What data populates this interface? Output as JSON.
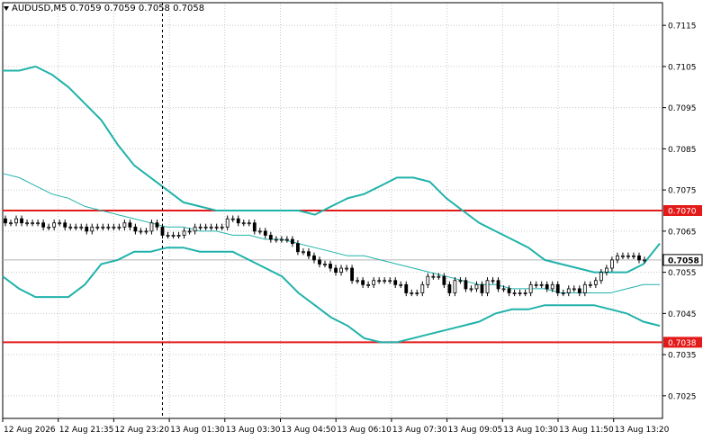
{
  "chart_data": {
    "type": "line",
    "title": "AUDUSD,M5  0.7059 0.7059 0.7058 0.7058",
    "symbol": "AUDUSD",
    "timeframe": "M5",
    "ohlc_header": [
      "0.7059",
      "0.7059",
      "0.7058",
      "0.7058"
    ],
    "ylim": [
      0.70195,
      0.71205
    ],
    "y_ticks": [
      "0.7115",
      "0.7105",
      "0.7095",
      "0.7085",
      "0.7075",
      "0.7065",
      "0.7055",
      "0.7045",
      "0.7035",
      "0.7025"
    ],
    "x_ticks": [
      "12 Aug 2026",
      "12 Aug 21:35",
      "12 Aug 23:20",
      "13 Aug 01:30",
      "13 Aug 03:30",
      "13 Aug 04:50",
      "13 Aug 06:10",
      "13 Aug 07:30",
      "13 Aug 09:05",
      "13 Aug 10:30",
      "13 Aug 11:50",
      "13 Aug 13:20"
    ],
    "grid": true,
    "horizontal_lines": [
      {
        "label": "0.7070",
        "value": 0.707,
        "color": "#e31a1a"
      },
      {
        "label": "0.7038",
        "value": 0.7038,
        "color": "#e31a1a"
      }
    ],
    "current_price": {
      "label": "0.7058",
      "value": 0.7058
    },
    "vertical_marker_index": 29,
    "series": [
      {
        "type": "bollinger_upper",
        "color": "#20b2aa",
        "values": [
          0.7104,
          0.7104,
          0.7105,
          0.7103,
          0.71,
          0.7096,
          0.7092,
          0.7086,
          0.7081,
          0.7078,
          0.7075,
          0.7072,
          0.7071,
          0.707,
          0.707,
          0.707,
          0.707,
          0.707,
          0.707,
          0.7069,
          0.7071,
          0.7073,
          0.7074,
          0.7076,
          0.7078,
          0.7078,
          0.7077,
          0.7073,
          0.707,
          0.7067,
          0.7065,
          0.7063,
          0.7061,
          0.7058,
          0.7057,
          0.7056,
          0.7055,
          0.7055,
          0.7055,
          0.7057,
          0.7062
        ]
      },
      {
        "type": "bollinger_middle",
        "color": "#20b2aa",
        "values": [
          0.7079,
          0.7078,
          0.7076,
          0.7074,
          0.7073,
          0.7071,
          0.707,
          0.7069,
          0.7068,
          0.7067,
          0.7066,
          0.7066,
          0.7065,
          0.7065,
          0.7064,
          0.7064,
          0.7063,
          0.7063,
          0.7062,
          0.7061,
          0.706,
          0.7059,
          0.7059,
          0.7058,
          0.7057,
          0.7056,
          0.7055,
          0.7054,
          0.7053,
          0.7052,
          0.7052,
          0.7051,
          0.7051,
          0.7051,
          0.705,
          0.705,
          0.705,
          0.705,
          0.7051,
          0.7052,
          0.7052
        ]
      },
      {
        "type": "bollinger_lower",
        "color": "#20b2aa",
        "values": [
          0.7054,
          0.7051,
          0.7049,
          0.7049,
          0.7049,
          0.7052,
          0.7057,
          0.7058,
          0.706,
          0.706,
          0.7061,
          0.7061,
          0.706,
          0.706,
          0.706,
          0.7058,
          0.7056,
          0.7054,
          0.705,
          0.7047,
          0.7044,
          0.7042,
          0.7039,
          0.7038,
          0.7038,
          0.7039,
          0.704,
          0.7041,
          0.7042,
          0.7043,
          0.7045,
          0.7046,
          0.7046,
          0.7047,
          0.7047,
          0.7047,
          0.7047,
          0.7046,
          0.7045,
          0.7043,
          0.7042
        ]
      }
    ],
    "candles": {
      "open": [
        0.7068,
        0.7067,
        0.7067,
        0.7068,
        0.7067,
        0.7067,
        0.7067,
        0.7067,
        0.7066,
        0.7066,
        0.7067,
        0.7067,
        0.7066,
        0.7066,
        0.7066,
        0.7066,
        0.7065,
        0.7066,
        0.7066,
        0.7066,
        0.7066,
        0.7066,
        0.7066,
        0.7067,
        0.7066,
        0.7065,
        0.7065,
        0.7065,
        0.7067,
        0.7066,
        0.7064,
        0.7064,
        0.7064,
        0.7064,
        0.7065,
        0.7065,
        0.7066,
        0.7066,
        0.7066,
        0.7066,
        0.7066,
        0.7066,
        0.7068,
        0.7068,
        0.7067,
        0.7067,
        0.7067,
        0.7065,
        0.7065,
        0.7064,
        0.7063,
        0.7063,
        0.7063,
        0.7063,
        0.7062,
        0.706,
        0.706,
        0.7059,
        0.7058,
        0.7057,
        0.7057,
        0.7056,
        0.7055,
        0.7056,
        0.7056,
        0.7053,
        0.7053,
        0.7052,
        0.7052,
        0.7053,
        0.7053,
        0.7053,
        0.7053,
        0.7052,
        0.7052,
        0.705,
        0.705,
        0.705,
        0.7052,
        0.7054,
        0.7054,
        0.7054,
        0.7052,
        0.705,
        0.7053,
        0.7053,
        0.7051,
        0.7051,
        0.7052,
        0.705,
        0.7053,
        0.7053,
        0.7051,
        0.7051,
        0.705,
        0.705,
        0.705,
        0.705,
        0.7052,
        0.7052,
        0.7052,
        0.7051,
        0.7052,
        0.705,
        0.705,
        0.7051,
        0.7051,
        0.705,
        0.7052,
        0.7052,
        0.7053,
        0.7055,
        0.7056,
        0.7058,
        0.7059,
        0.7059,
        0.7059,
        0.7059,
        0.7058
      ],
      "close": [
        0.7067,
        0.7067,
        0.7068,
        0.7067,
        0.7067,
        0.7067,
        0.7067,
        0.7066,
        0.7066,
        0.7067,
        0.7067,
        0.7066,
        0.7066,
        0.7066,
        0.7066,
        0.7065,
        0.7066,
        0.7066,
        0.7066,
        0.7066,
        0.7066,
        0.7066,
        0.7067,
        0.7066,
        0.7065,
        0.7065,
        0.7065,
        0.7067,
        0.7066,
        0.7064,
        0.7064,
        0.7064,
        0.7064,
        0.7065,
        0.7065,
        0.7066,
        0.7066,
        0.7066,
        0.7066,
        0.7066,
        0.7066,
        0.7068,
        0.7068,
        0.7067,
        0.7067,
        0.7067,
        0.7065,
        0.7065,
        0.7064,
        0.7063,
        0.7063,
        0.7063,
        0.7063,
        0.7062,
        0.706,
        0.706,
        0.7059,
        0.7058,
        0.7057,
        0.7057,
        0.7056,
        0.7055,
        0.7056,
        0.7056,
        0.7053,
        0.7053,
        0.7052,
        0.7052,
        0.7053,
        0.7053,
        0.7053,
        0.7053,
        0.7052,
        0.7052,
        0.705,
        0.705,
        0.705,
        0.7052,
        0.7054,
        0.7054,
        0.7054,
        0.7052,
        0.705,
        0.7053,
        0.7053,
        0.7051,
        0.7051,
        0.7052,
        0.705,
        0.7053,
        0.7053,
        0.7051,
        0.7051,
        0.705,
        0.705,
        0.705,
        0.705,
        0.7052,
        0.7052,
        0.7052,
        0.7051,
        0.7052,
        0.705,
        0.705,
        0.7051,
        0.7051,
        0.705,
        0.7052,
        0.7052,
        0.7053,
        0.7055,
        0.7056,
        0.7058,
        0.7059,
        0.7059,
        0.7059,
        0.7059,
        0.7058,
        0.7058
      ]
    }
  }
}
